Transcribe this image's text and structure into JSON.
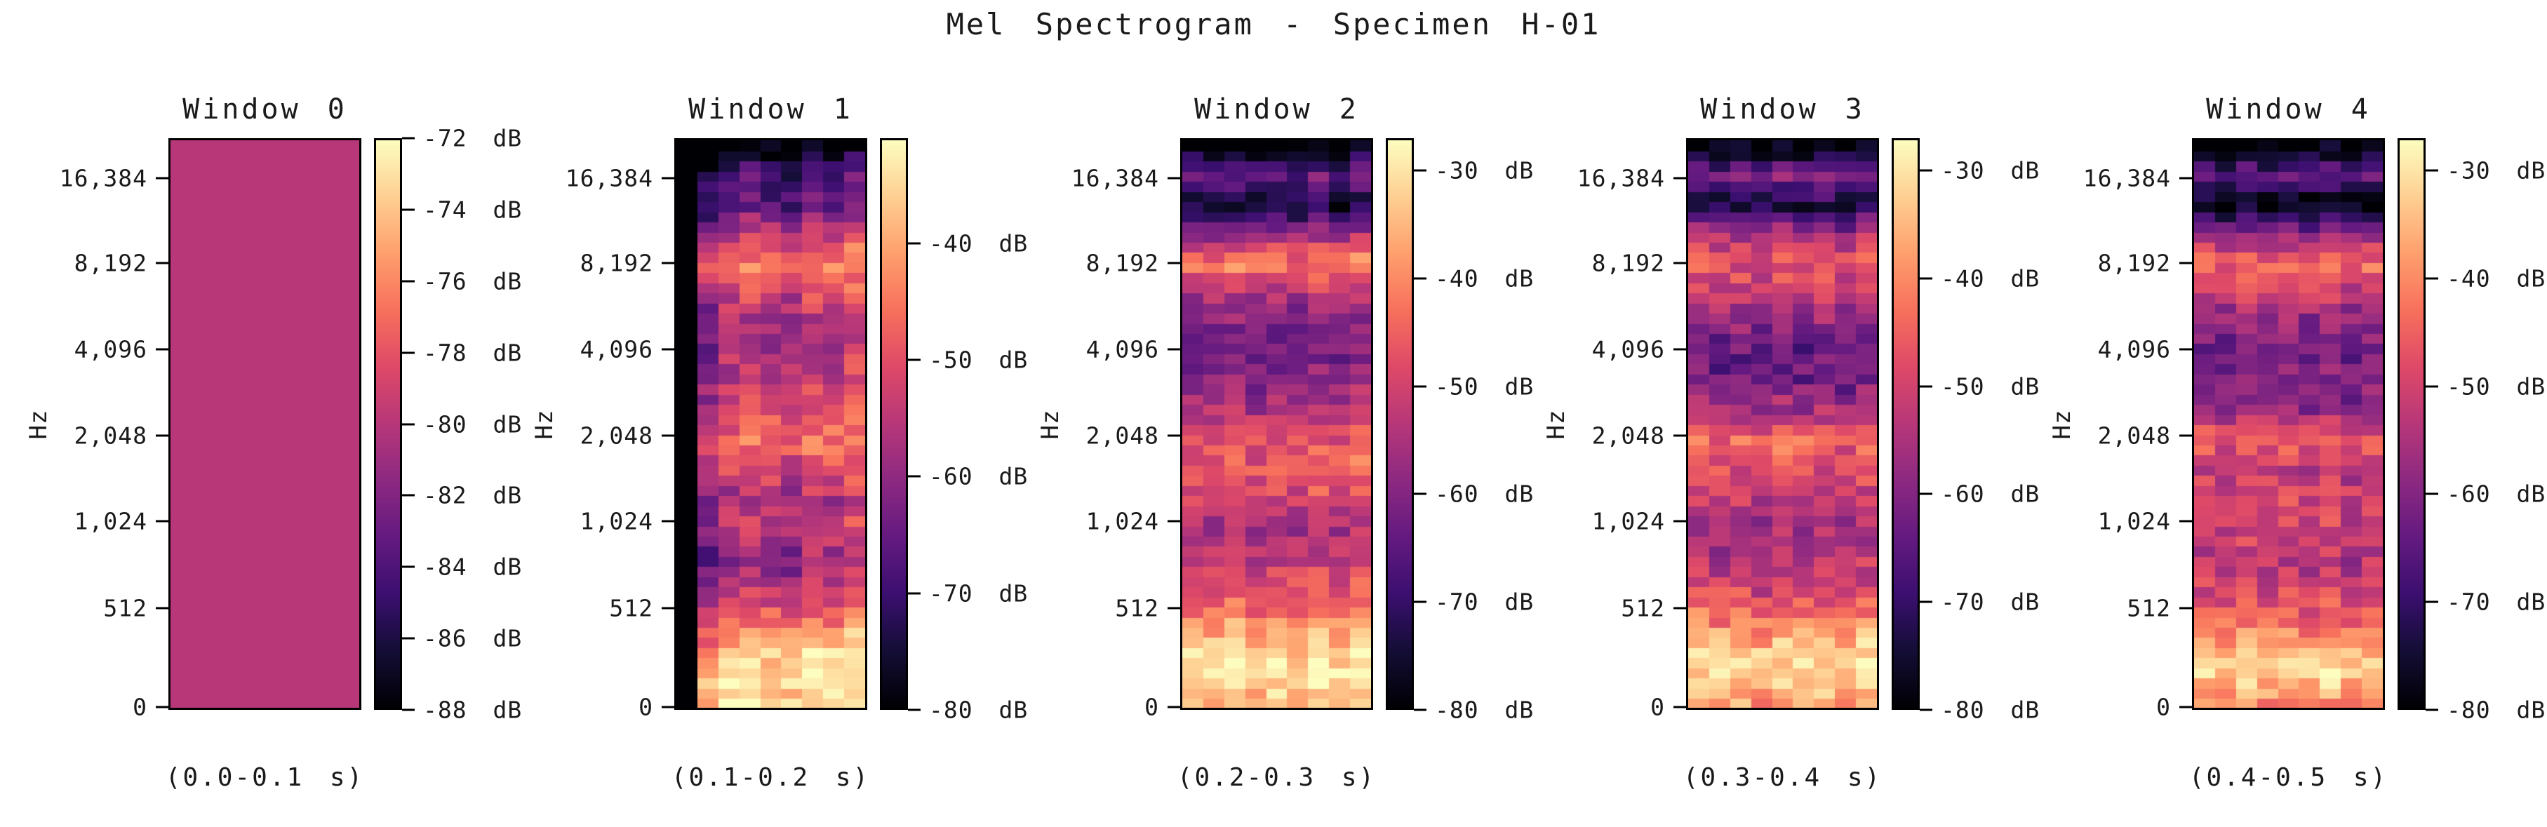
{
  "figure": {
    "title": "Mel Spectrogram - Specimen H-01",
    "background_color": "#ffffff",
    "text_color": "#1a1a1a",
    "colormap": {
      "name": "magma",
      "stops": [
        "#000004",
        "#140e36",
        "#3b0f70",
        "#641a80",
        "#8c2981",
        "#b73779",
        "#de4968",
        "#f7705c",
        "#fe9f6d",
        "#fecf92",
        "#fcfdbf"
      ]
    },
    "freq_axis": {
      "label": "Hz",
      "tick_labels": [
        "16,384",
        "8,192",
        "4,096",
        "2,048",
        "1,024",
        "512",
        "0"
      ],
      "tick_values_hz": [
        16384,
        8192,
        4096,
        2048,
        1024,
        512,
        0
      ]
    },
    "colorbar_unit": "dB"
  },
  "chart_data": [
    {
      "type": "heatmap",
      "title": "Window 0",
      "xlabel": "(0.0-0.1 s)",
      "ylabel": "Hz",
      "vmin": -88,
      "vmax": -72,
      "constant_db": -80,
      "colorbar_tick_values": [
        -72,
        -74,
        -76,
        -78,
        -80,
        -82,
        -84,
        -86,
        -88
      ],
      "grid_rows": 1,
      "grid_cols": 1,
      "note": "uniform value: entire window at -80 dB"
    },
    {
      "type": "heatmap",
      "title": "Window 1",
      "xlabel": "(0.1-0.2 s)",
      "ylabel": "Hz",
      "vmin": -80,
      "vmax": -31,
      "colorbar_tick_values": [
        -40,
        -50,
        -60,
        -70,
        -80
      ],
      "grid_rows": 56,
      "grid_cols": 9,
      "profile_db": [
        -34,
        -33,
        -38,
        -47,
        -55,
        -60,
        -53,
        -57,
        -50,
        -46,
        -50,
        -54,
        -56,
        -57,
        -52,
        -44,
        -54,
        -66,
        -68,
        -80
      ],
      "col_bias_db": [
        -60,
        -7,
        -1,
        1,
        -1,
        -3,
        2,
        0,
        3
      ],
      "noise_db": 5,
      "seed": 11
    },
    {
      "type": "heatmap",
      "title": "Window 2",
      "xlabel": "(0.2-0.3 s)",
      "ylabel": "Hz",
      "vmin": -80,
      "vmax": -27,
      "colorbar_tick_values": [
        -30,
        -40,
        -50,
        -60,
        -70,
        -80
      ],
      "grid_rows": 56,
      "grid_cols": 9,
      "profile_db": [
        -34,
        -29,
        -33,
        -41,
        -46,
        -52,
        -55,
        -49,
        -45,
        -47,
        -54,
        -59,
        -62,
        -60,
        -54,
        -41,
        -57,
        -76,
        -63,
        -80
      ],
      "col_bias_db": [
        0,
        -1,
        1,
        -2,
        0,
        -2,
        1,
        -1,
        2
      ],
      "noise_db": 5,
      "seed": 22
    },
    {
      "type": "heatmap",
      "title": "Window 3",
      "xlabel": "(0.3-0.4 s)",
      "ylabel": "Hz",
      "vmin": -80,
      "vmax": -27,
      "colorbar_tick_values": [
        -30,
        -40,
        -50,
        -60,
        -70,
        -80
      ],
      "grid_rows": 56,
      "grid_cols": 9,
      "profile_db": [
        -38,
        -31,
        -34,
        -43,
        -50,
        -54,
        -56,
        -52,
        -48,
        -44,
        -55,
        -62,
        -64,
        -58,
        -52,
        -47,
        -55,
        -74,
        -60,
        -80
      ],
      "col_bias_db": [
        1,
        -1,
        0,
        -2,
        1,
        -1,
        0,
        -2,
        1
      ],
      "noise_db": 5.5,
      "seed": 33
    },
    {
      "type": "heatmap",
      "title": "Window 4",
      "xlabel": "(0.4-0.5 s)",
      "ylabel": "Hz",
      "vmin": -80,
      "vmax": -27,
      "colorbar_tick_values": [
        -30,
        -40,
        -50,
        -60,
        -70,
        -80
      ],
      "grid_rows": 56,
      "grid_cols": 9,
      "profile_db": [
        -40,
        -31,
        -35,
        -45,
        -50,
        -53,
        -50,
        -48,
        -52,
        -45,
        -57,
        -60,
        -62,
        -58,
        -50,
        -43,
        -58,
        -78,
        -64,
        -80
      ],
      "col_bias_db": [
        0,
        -2,
        1,
        -1,
        0,
        -2,
        1,
        -3,
        0
      ],
      "noise_db": 5,
      "seed": 44
    }
  ]
}
